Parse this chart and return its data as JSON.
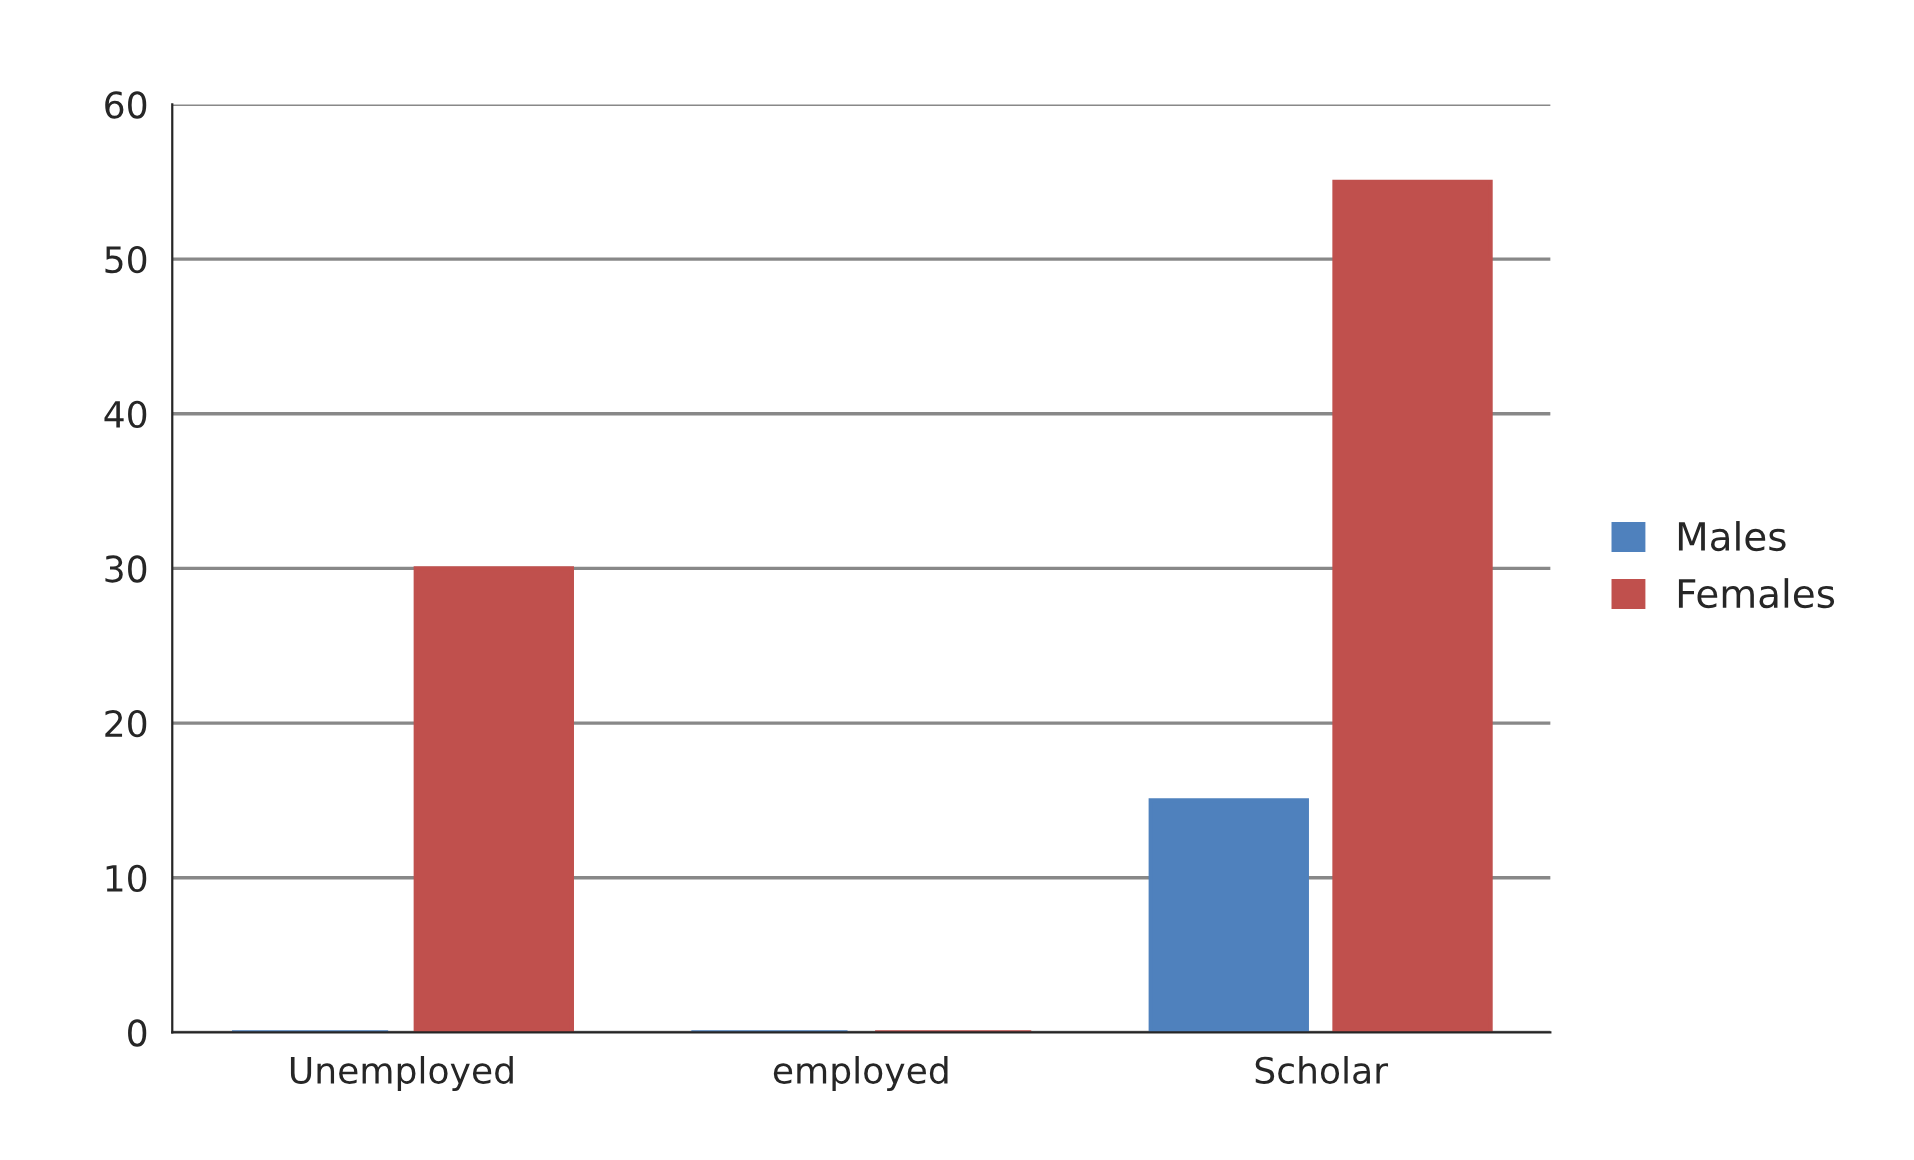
{
  "chart_data": {
    "type": "bar",
    "categories": [
      "Unemployed",
      "employed",
      "Scholar"
    ],
    "series": [
      {
        "name": "Males",
        "color": "#4f81bd",
        "values": [
          0,
          0,
          15
        ]
      },
      {
        "name": "Females",
        "color": "#c0504d",
        "values": [
          30,
          0,
          55
        ]
      }
    ],
    "ylim": [
      0,
      60
    ],
    "yticks": [
      0,
      10,
      20,
      30,
      40,
      50,
      60
    ],
    "grid": "y",
    "legend": "right"
  }
}
